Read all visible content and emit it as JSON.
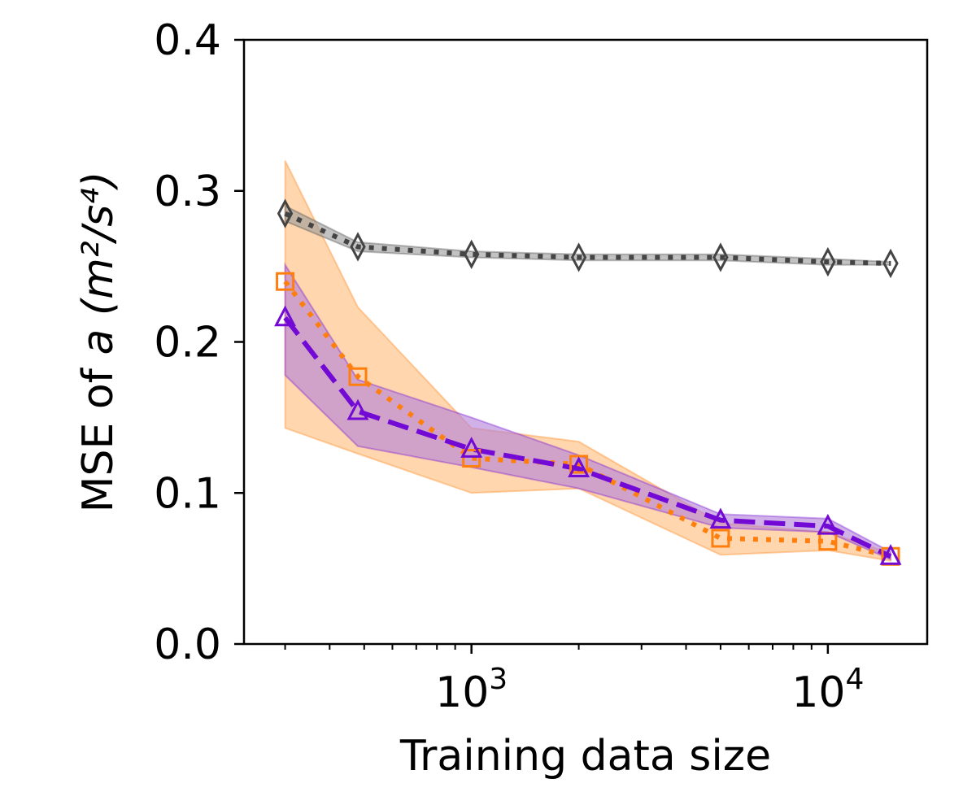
{
  "chart_data": {
    "type": "line",
    "xscale": "log",
    "xlim": [
      230,
      19000
    ],
    "ylim": [
      0.0,
      0.4
    ],
    "xlabel": "Training data size",
    "ylabel": {
      "prefix": "MSE of ",
      "var": "a",
      "unit": "(m²/s⁴)"
    },
    "x_ticks": [
      {
        "value": 1000,
        "base": "10",
        "exp": "3"
      },
      {
        "value": 10000,
        "base": "10",
        "exp": "4"
      }
    ],
    "y_ticks": [
      {
        "value": 0.0,
        "label": "0.0"
      },
      {
        "value": 0.1,
        "label": "0.1"
      },
      {
        "value": 0.2,
        "label": "0.2"
      },
      {
        "value": 0.3,
        "label": "0.3"
      },
      {
        "value": 0.4,
        "label": "0.4"
      }
    ],
    "grid": false,
    "legend": "none",
    "x": [
      300,
      480,
      1000,
      2000,
      5000,
      10000,
      15000
    ],
    "series": [
      {
        "color": "#ff7f0e",
        "fill": "#ffbb78",
        "marker": "square",
        "linestyle": "dotted",
        "values": [
          0.24,
          0.177,
          0.123,
          0.119,
          0.07,
          0.068,
          0.058
        ],
        "lower": [
          0.143,
          0.126,
          0.1,
          0.103,
          0.059,
          0.062,
          0.055
        ],
        "upper": [
          0.32,
          0.223,
          0.143,
          0.134,
          0.08,
          0.074,
          0.06
        ]
      },
      {
        "color": "#7209d4",
        "fill": "#b17fdb",
        "marker": "triangle",
        "linestyle": "dashed",
        "values": [
          0.216,
          0.154,
          0.129,
          0.116,
          0.082,
          0.078,
          0.058
        ],
        "lower": [
          0.178,
          0.131,
          0.117,
          0.103,
          0.077,
          0.074,
          0.056
        ],
        "upper": [
          0.251,
          0.175,
          0.15,
          0.125,
          0.086,
          0.083,
          0.061
        ]
      },
      {
        "color": "#444444",
        "fill": "#999999",
        "marker": "diamond",
        "linestyle": "dotted",
        "values": [
          0.285,
          0.263,
          0.258,
          0.256,
          0.256,
          0.253,
          0.252
        ],
        "lower": [
          0.28,
          0.26,
          0.256,
          0.254,
          0.254,
          0.251,
          0.251
        ],
        "upper": [
          0.29,
          0.266,
          0.26,
          0.258,
          0.258,
          0.255,
          0.253
        ]
      }
    ]
  }
}
